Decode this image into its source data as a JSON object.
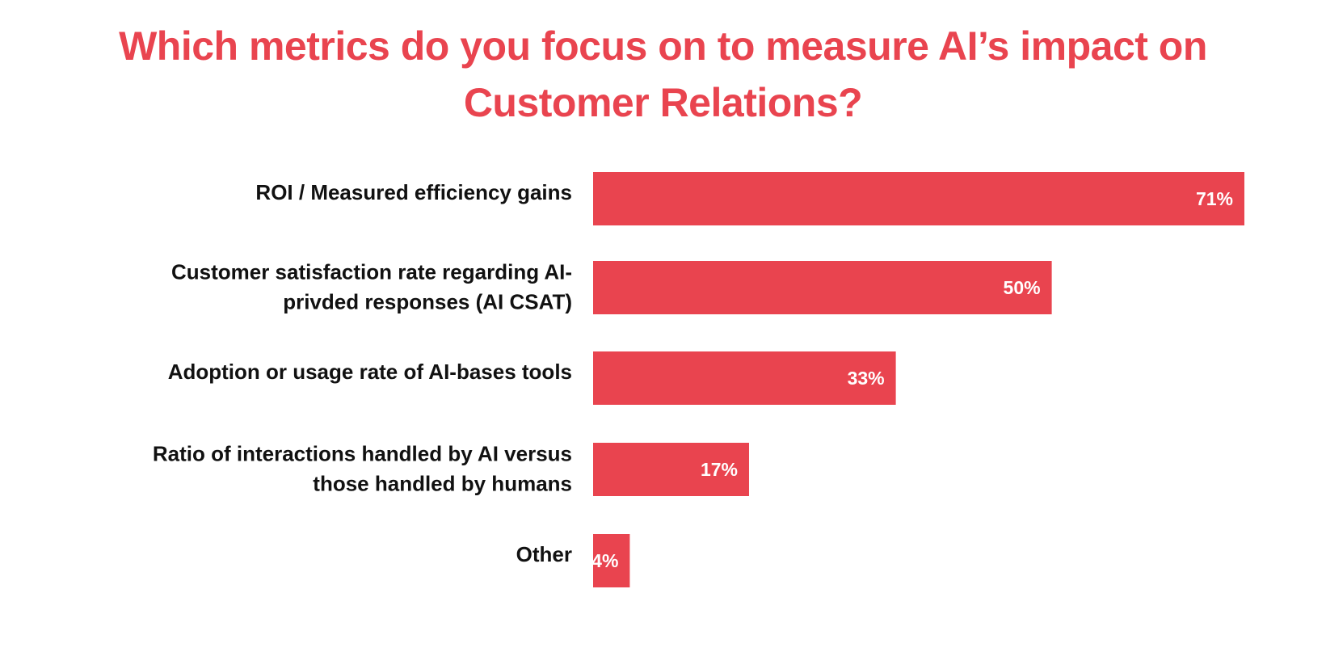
{
  "chart_data": {
    "type": "bar",
    "orientation": "horizontal",
    "title": "Which metrics do you focus on to measure AI’s impact on Customer Relations?",
    "categories": [
      "ROI / Measured efficiency gains",
      "Customer satisfaction rate regarding AI-privded responses (AI CSAT)",
      "Adoption or usage rate of AI-bases tools",
      "Ratio of interactions handled by AI versus those handled by humans",
      "Other"
    ],
    "category_lines": [
      [
        "ROI / Measured efficiency gains"
      ],
      [
        "Customer satisfaction rate regarding AI-",
        "privded responses (AI CSAT)"
      ],
      [
        "Adoption or usage rate of AI-bases tools"
      ],
      [
        "Ratio of interactions handled by AI versus",
        "those handled by humans"
      ],
      [
        "Other"
      ]
    ],
    "values": [
      71,
      50,
      33,
      17,
      4
    ],
    "value_labels": [
      "71%",
      "50%",
      "33%",
      "17%",
      "4%"
    ],
    "unit": "%",
    "xlim": [
      0,
      71
    ],
    "bar_color": "#E9444F",
    "title_color": "#E9444F",
    "label_color": "#111111",
    "value_label_color": "#FFFFFF",
    "grid": false,
    "legend": "none"
  }
}
